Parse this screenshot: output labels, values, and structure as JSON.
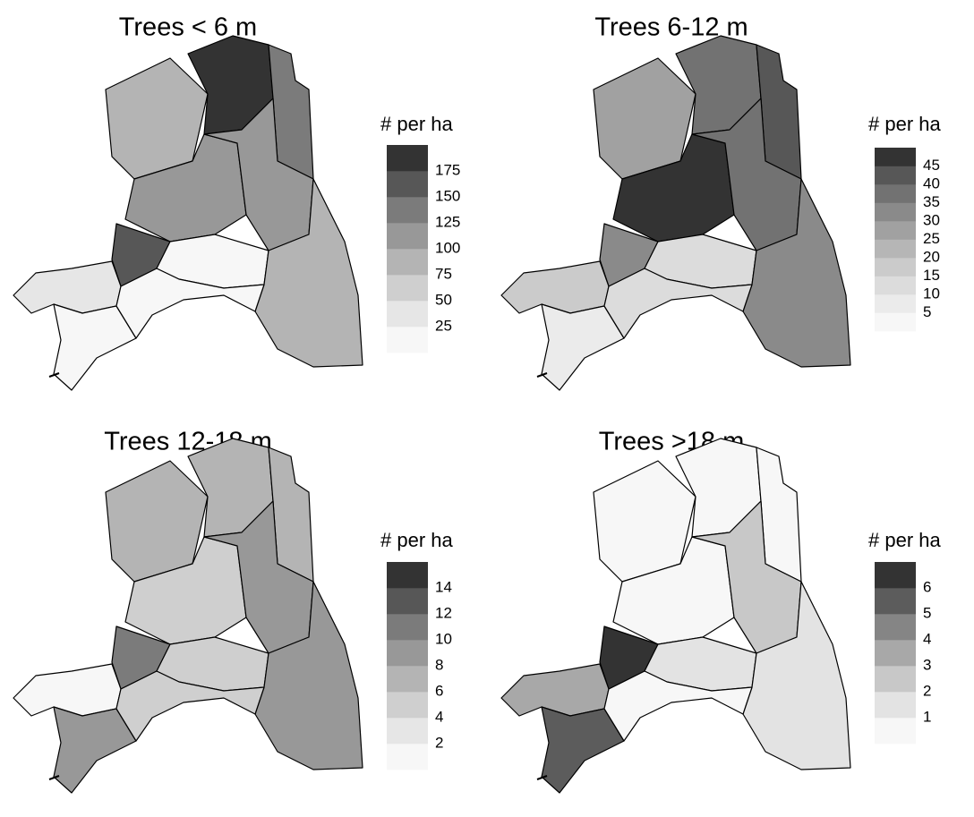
{
  "maps": [
    {
      "title": "Trees < 6 m",
      "legend_title": "# per ha",
      "legend_ticks": [
        25,
        50,
        75,
        100,
        125,
        150,
        175
      ],
      "bin_colors": [
        "#f7f7f7",
        "#e6e6e6",
        "#cfcfcf",
        "#b4b4b4",
        "#989898",
        "#7b7b7b",
        "#575757",
        "#333333"
      ],
      "region_values": [
        90,
        190,
        140,
        110,
        115,
        160,
        20,
        80,
        40,
        10,
        15
      ]
    },
    {
      "title": "Trees 6-12 m",
      "legend_title": "# per ha",
      "legend_ticks": [
        5,
        10,
        15,
        20,
        25,
        30,
        35,
        40,
        45
      ],
      "bin_colors": [
        "#f7f7f7",
        "#ebebeb",
        "#dcdcdc",
        "#cbcbcb",
        "#b6b6b6",
        "#a1a1a1",
        "#8a8a8a",
        "#727272",
        "#575757",
        "#333333"
      ],
      "region_values": [
        27,
        37,
        43,
        48,
        37,
        30,
        12,
        32,
        15,
        8,
        12
      ]
    },
    {
      "title": "Trees 12-18 m",
      "legend_title": "# per ha",
      "legend_ticks": [
        2,
        4,
        6,
        8,
        10,
        12,
        14
      ],
      "bin_colors": [
        "#f7f7f7",
        "#e6e6e6",
        "#cfcfcf",
        "#b4b4b4",
        "#989898",
        "#7b7b7b",
        "#575757",
        "#333333"
      ],
      "region_values": [
        7,
        6,
        7,
        5,
        9,
        11,
        5,
        8,
        1,
        9,
        5
      ]
    },
    {
      "title": "Trees >18 m",
      "legend_title": "# per ha",
      "legend_ticks": [
        1,
        2,
        3,
        4,
        5,
        6
      ],
      "bin_colors": [
        "#f7f7f7",
        "#e3e3e3",
        "#c8c8c8",
        "#a8a8a8",
        "#858585",
        "#5c5c5c",
        "#333333"
      ],
      "region_values": [
        0.5,
        0.5,
        0.5,
        0.5,
        2.5,
        6.5,
        1,
        1,
        3.5,
        5,
        0.5
      ]
    }
  ]
}
